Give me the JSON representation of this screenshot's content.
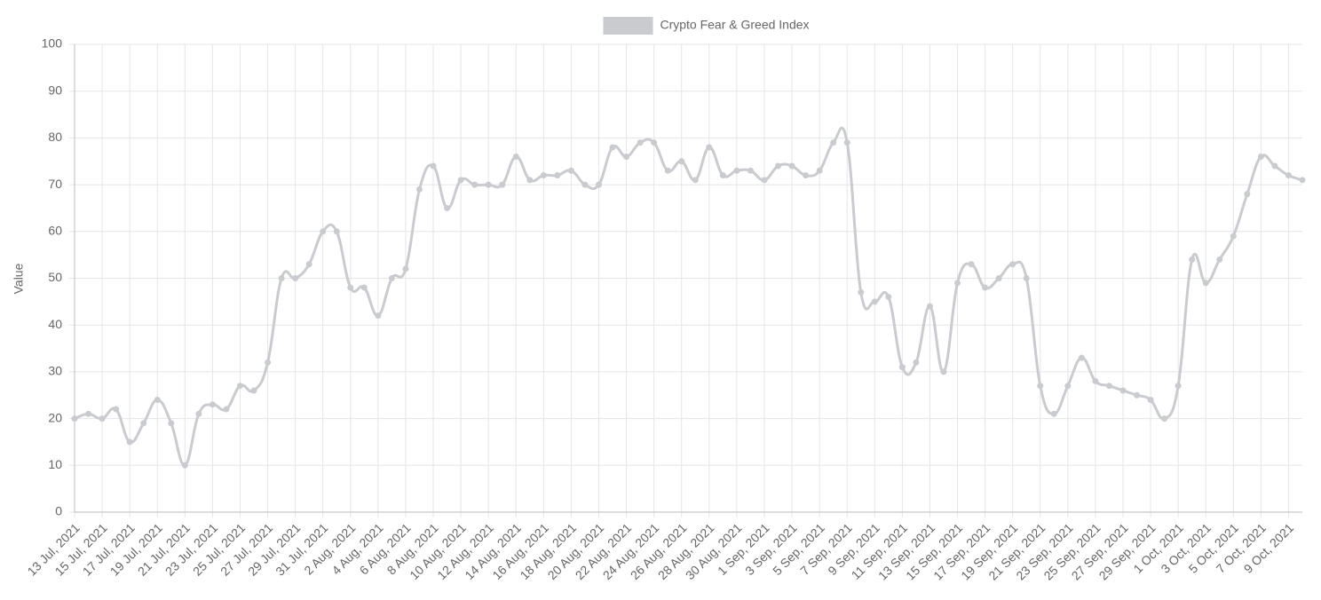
{
  "chart_data": {
    "type": "line",
    "y_label": "Value",
    "categories": [
      "13 Jul, 2021",
      null,
      "15 Jul, 2021",
      null,
      "17 Jul, 2021",
      null,
      "19 Jul, 2021",
      null,
      "21 Jul, 2021",
      null,
      "23 Jul, 2021",
      null,
      "25 Jul, 2021",
      null,
      "27 Jul, 2021",
      null,
      "29 Jul, 2021",
      null,
      "31 Jul, 2021",
      null,
      "2 Aug, 2021",
      null,
      "4 Aug, 2021",
      null,
      "6 Aug, 2021",
      null,
      "8 Aug, 2021",
      null,
      "10 Aug, 2021",
      null,
      "12 Aug, 2021",
      null,
      "14 Aug, 2021",
      null,
      "16 Aug, 2021",
      null,
      "18 Aug, 2021",
      null,
      "20 Aug, 2021",
      null,
      "22 Aug, 2021",
      null,
      "24 Aug, 2021",
      null,
      "26 Aug, 2021",
      null,
      "28 Aug, 2021",
      null,
      "30 Aug, 2021",
      null,
      "1 Sep, 2021",
      null,
      "3 Sep, 2021",
      null,
      "5 Sep, 2021",
      null,
      "7 Sep, 2021",
      null,
      "9 Sep, 2021",
      null,
      "11 Sep, 2021",
      null,
      "13 Sep, 2021",
      null,
      "15 Sep, 2021",
      null,
      "17 Sep, 2021",
      null,
      "19 Sep, 2021",
      null,
      "21 Sep, 2021",
      null,
      "23 Sep, 2021",
      null,
      "25 Sep, 2021",
      null,
      "27 Sep, 2021",
      null,
      "29 Sep, 2021",
      null,
      "1 Oct, 2021",
      null,
      "3 Oct, 2021",
      null,
      "5 Oct, 2021",
      null,
      "7 Oct, 2021",
      null,
      "9 Oct, 2021",
      null
    ],
    "series": [
      {
        "name": "Crypto Fear & Greed Index",
        "color": "#c9cbcf",
        "values": [
          20,
          21,
          20,
          22,
          15,
          19,
          24,
          19,
          10,
          21,
          23,
          22,
          27,
          26,
          32,
          50,
          50,
          53,
          60,
          60,
          48,
          48,
          42,
          50,
          52,
          69,
          74,
          65,
          71,
          70,
          70,
          70,
          76,
          71,
          72,
          72,
          73,
          70,
          70,
          78,
          76,
          79,
          79,
          73,
          75,
          71,
          78,
          72,
          73,
          73,
          71,
          74,
          74,
          72,
          73,
          79,
          79,
          47,
          45,
          46,
          31,
          32,
          44,
          30,
          49,
          53,
          48,
          50,
          53,
          50,
          27,
          21,
          27,
          33,
          28,
          27,
          26,
          25,
          24,
          20,
          27,
          54,
          49,
          54,
          59,
          68,
          76,
          74,
          72,
          71
        ]
      }
    ],
    "ylim": [
      0,
      100
    ],
    "yticks": [
      0,
      10,
      20,
      30,
      40,
      50,
      60,
      70,
      80,
      90,
      100
    ],
    "grid": true,
    "legend": "top"
  }
}
